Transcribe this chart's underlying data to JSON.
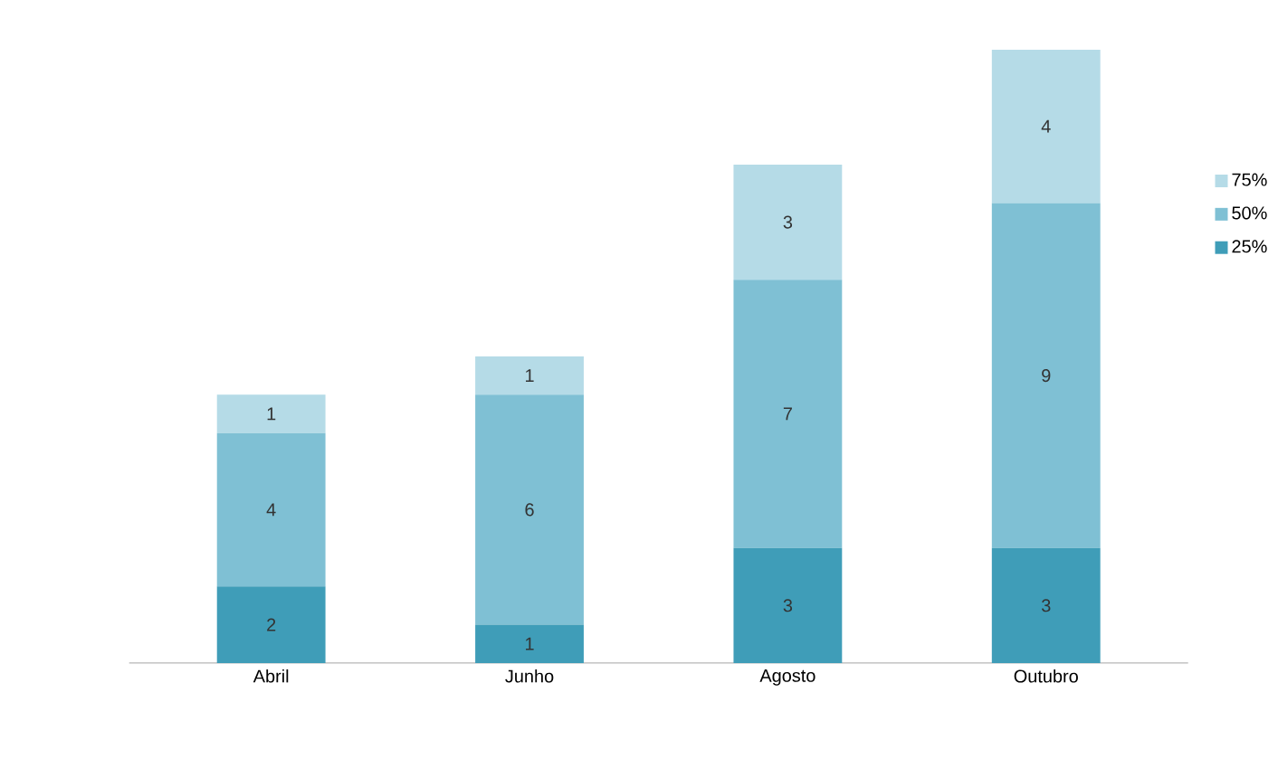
{
  "chart_data": {
    "type": "bar",
    "stacked": true,
    "data_labels": true,
    "legend": "right",
    "categories": [
      "Abril",
      "Junho",
      "Agosto",
      "Outubro"
    ],
    "series": [
      {
        "name": "25%",
        "color": "#3f9db8",
        "values": [
          2,
          1,
          3,
          3
        ]
      },
      {
        "name": "50%",
        "color": "#7fc0d4",
        "values": [
          4,
          6,
          7,
          9
        ]
      },
      {
        "name": "75%",
        "color": "#b5dbe7",
        "values": [
          1,
          1,
          3,
          4
        ]
      }
    ]
  }
}
